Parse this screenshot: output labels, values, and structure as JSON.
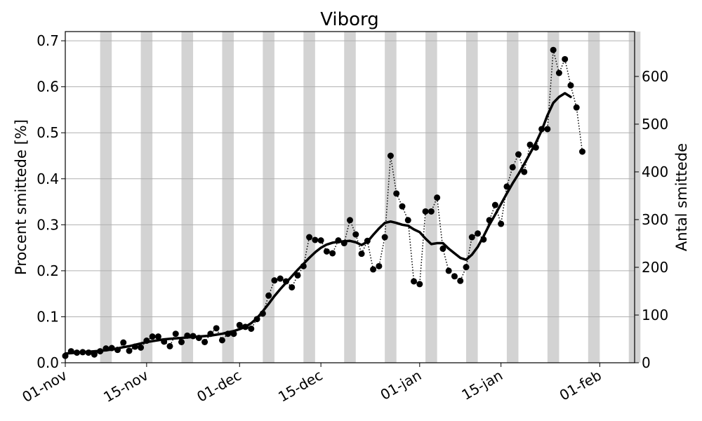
{
  "chart_data": {
    "type": "line",
    "title": "Viborg",
    "ylabel": "Procent smittede [%]",
    "ylabel_right": "Antal smittede",
    "xlim": [
      "2020-11-01",
      "2021-02-07"
    ],
    "ylim": [
      0,
      0.72
    ],
    "ylim_right": [
      0,
      694
    ],
    "x_ticks": [
      {
        "date": "2020-11-01",
        "label": "01-nov"
      },
      {
        "date": "2020-11-15",
        "label": "15-nov"
      },
      {
        "date": "2020-12-01",
        "label": "01-dec"
      },
      {
        "date": "2020-12-15",
        "label": "15-dec"
      },
      {
        "date": "2021-01-01",
        "label": "01-jan"
      },
      {
        "date": "2021-01-15",
        "label": "15-jan"
      },
      {
        "date": "2021-02-01",
        "label": "01-feb"
      }
    ],
    "y_ticks": [
      "0.0",
      "0.1",
      "0.2",
      "0.3",
      "0.4",
      "0.5",
      "0.6",
      "0.7"
    ],
    "y_ticks_right": [
      "0",
      "100",
      "200",
      "300",
      "400",
      "500",
      "600"
    ],
    "grid": "horizontal",
    "weekend_shading": {
      "color": "#d3d3d3",
      "first_saturday": "2020-11-07",
      "last_saturday": "2021-02-06"
    },
    "series": [
      {
        "style": "dotted-markers",
        "color": "#000000",
        "x_start": "2020-11-01",
        "values": [
          0.015,
          0.025,
          0.022,
          0.023,
          0.022,
          0.018,
          0.025,
          0.031,
          0.032,
          0.028,
          0.044,
          0.026,
          0.035,
          0.033,
          0.048,
          0.057,
          0.057,
          0.046,
          0.036,
          0.063,
          0.045,
          0.059,
          0.058,
          0.054,
          0.045,
          0.063,
          0.075,
          0.049,
          0.063,
          0.063,
          0.082,
          0.078,
          0.074,
          0.095,
          0.107,
          0.146,
          0.179,
          0.183,
          0.177,
          0.164,
          0.19,
          0.21,
          0.273,
          0.267,
          0.266,
          0.242,
          0.238,
          0.266,
          0.26,
          0.31,
          0.279,
          0.237,
          0.265,
          0.203,
          0.21,
          0.273,
          0.45,
          0.368,
          0.34,
          0.31,
          0.177,
          0.171,
          0.329,
          0.329,
          0.359,
          0.248,
          0.2,
          0.188,
          0.178,
          0.208,
          0.273,
          0.281,
          0.268,
          0.31,
          0.343,
          0.302,
          0.383,
          0.425,
          0.453,
          0.415,
          0.474,
          0.468,
          0.508,
          0.508,
          0.68,
          0.63,
          0.66,
          0.603,
          0.555,
          0.459
        ]
      },
      {
        "style": "solid-thick",
        "color": "#000000",
        "x_start": "2020-11-01",
        "values": [
          0.02,
          0.021,
          0.022,
          0.023,
          0.024,
          0.025,
          0.026,
          0.027,
          0.029,
          0.031,
          0.034,
          0.036,
          0.039,
          0.042,
          0.045,
          0.047,
          0.049,
          0.051,
          0.052,
          0.053,
          0.054,
          0.055,
          0.056,
          0.057,
          0.058,
          0.059,
          0.061,
          0.063,
          0.066,
          0.069,
          0.073,
          0.078,
          0.086,
          0.097,
          0.112,
          0.128,
          0.145,
          0.16,
          0.174,
          0.188,
          0.202,
          0.215,
          0.228,
          0.24,
          0.25,
          0.257,
          0.261,
          0.263,
          0.264,
          0.265,
          0.262,
          0.256,
          0.263,
          0.278,
          0.292,
          0.304,
          0.307,
          0.304,
          0.3,
          0.298,
          0.29,
          0.284,
          0.27,
          0.258,
          0.26,
          0.26,
          0.248,
          0.238,
          0.228,
          0.224,
          0.235,
          0.252,
          0.275,
          0.3,
          0.322,
          0.345,
          0.368,
          0.39,
          0.41,
          0.432,
          0.455,
          0.478,
          0.505,
          0.538,
          0.565,
          0.578,
          0.586,
          0.578
        ]
      }
    ]
  }
}
